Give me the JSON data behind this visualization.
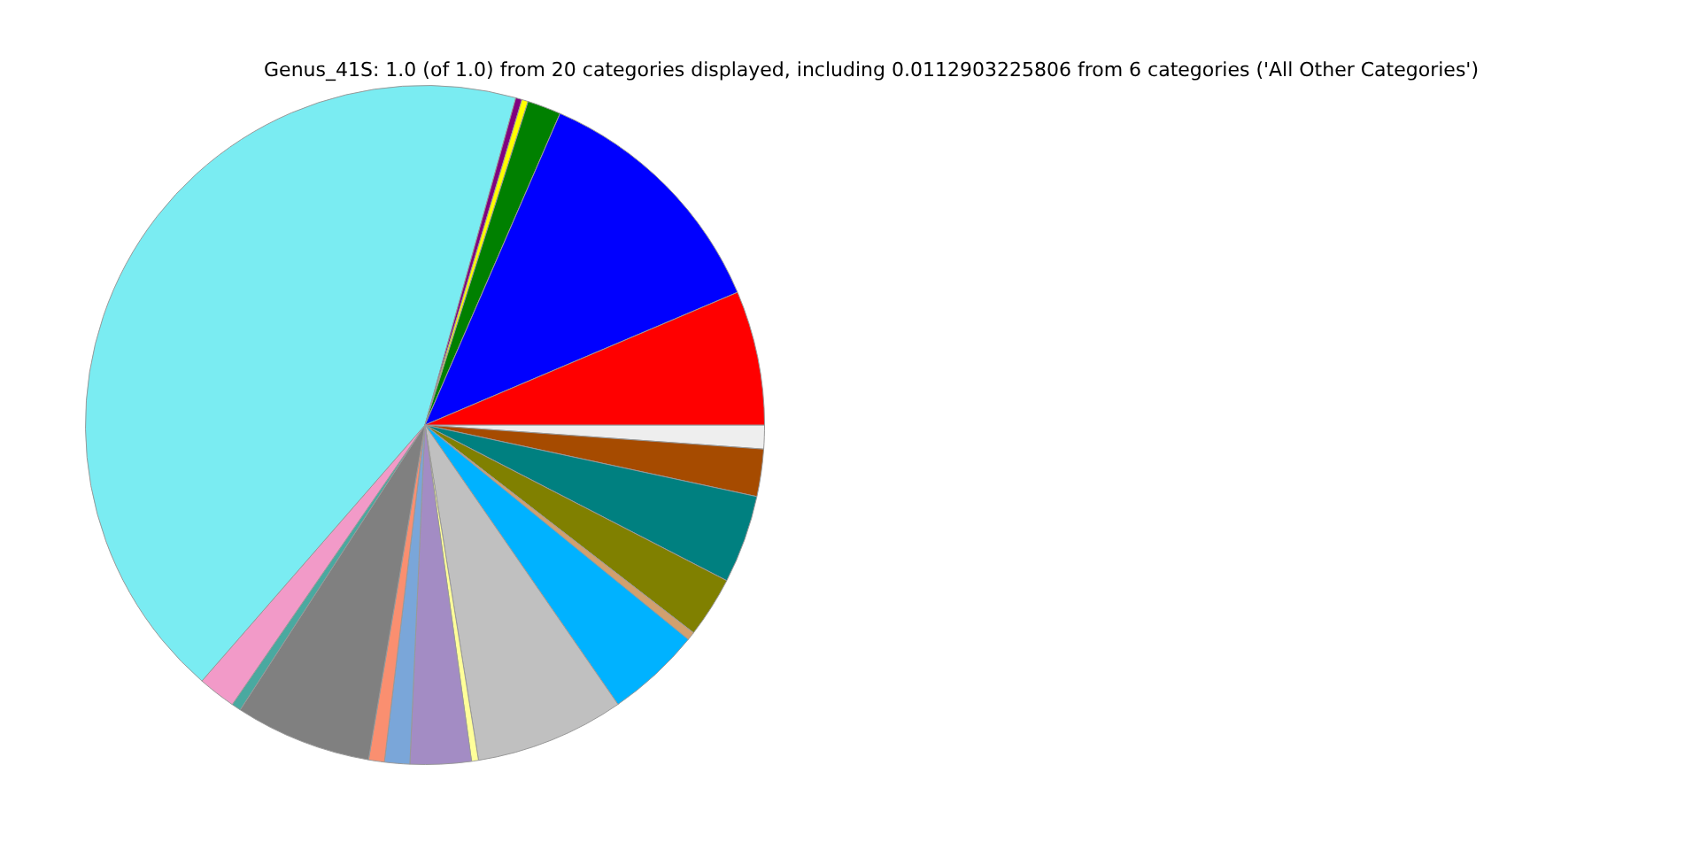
{
  "chart_data": {
    "type": "pie",
    "title": "Genus_41S: 1.0 (of 1.0) from 20 categories displayed, including 0.0112903225806 from 6 categories ('All Other Categories')",
    "categories": [
      null,
      null,
      null,
      null,
      null,
      null,
      null,
      null,
      null,
      null,
      null,
      null,
      null,
      null,
      null,
      null,
      null,
      null,
      null,
      null
    ],
    "values": [
      1.13,
      2.25,
      4.2,
      2.9,
      0.4,
      4.5,
      7.1,
      0.33,
      2.9,
      1.2,
      0.75,
      6.5,
      0.45,
      1.8,
      42.9,
      0.3,
      0.3,
      1.6,
      12.1,
      6.39
    ],
    "colors": [
      "#eeeeee",
      "#a64b00",
      "#008080",
      "#808000",
      "#d2a06e",
      "#00b2ff",
      "#c0c0c0",
      "#ffff99",
      "#a38cc4",
      "#7aa6d9",
      "#fa8f70",
      "#808080",
      "#4aa9a0",
      "#f29ac8",
      "#7aecf2",
      "#800080",
      "#ffff00",
      "#008000",
      "#0000ff",
      "#ff0000"
    ],
    "legend": false
  }
}
